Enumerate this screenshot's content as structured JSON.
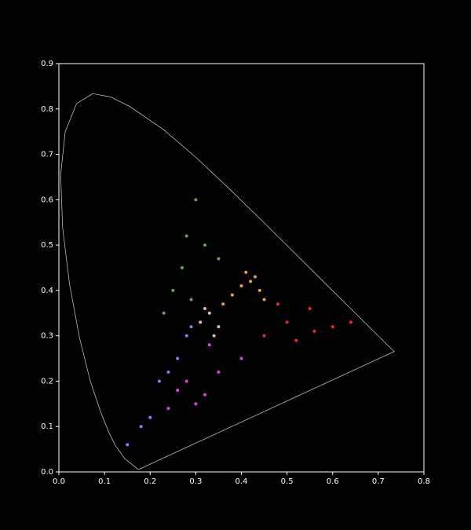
{
  "chart_data": {
    "type": "scatter",
    "xlim": [
      0,
      0.8
    ],
    "ylim": [
      0,
      0.9
    ],
    "xticks": [
      {
        "value": 0,
        "label": "0.0"
      },
      0.1,
      0.2,
      0.3,
      0.4,
      0.5,
      0.6,
      0.7,
      0.8
    ],
    "yticks": [
      {
        "value": 0,
        "label": "0.0"
      },
      0.1,
      0.2,
      0.3,
      0.4,
      0.5,
      0.6,
      0.7,
      0.8,
      0.9
    ],
    "locus": {
      "color": "#bbbbbb",
      "x": [
        0.1741,
        0.144,
        0.1241,
        0.1096,
        0.0913,
        0.0687,
        0.0454,
        0.0235,
        0.0082,
        0.0039,
        0.0139,
        0.0389,
        0.0743,
        0.1142,
        0.1547,
        0.2296,
        0.3016,
        0.3731,
        0.4441,
        0.5125,
        0.5752,
        0.627,
        0.6915,
        0.7347,
        0.1741
      ],
      "y": [
        0.005,
        0.0297,
        0.0578,
        0.0868,
        0.1327,
        0.2007,
        0.295,
        0.4127,
        0.5384,
        0.6548,
        0.7502,
        0.812,
        0.8338,
        0.8262,
        0.8059,
        0.7543,
        0.6923,
        0.6245,
        0.5547,
        0.4866,
        0.4242,
        0.3725,
        0.3083,
        0.2653,
        0.005
      ]
    },
    "series": [
      {
        "color": "#ff2020",
        "x": [
          0.64,
          0.6,
          0.56,
          0.52,
          0.5,
          0.55,
          0.45,
          0.48
        ],
        "y": [
          0.33,
          0.32,
          0.31,
          0.29,
          0.33,
          0.36,
          0.3,
          0.37
        ]
      },
      {
        "color": "#f0a030",
        "x": [
          0.42,
          0.43,
          0.4,
          0.44,
          0.41,
          0.38,
          0.45,
          0.36
        ],
        "y": [
          0.42,
          0.43,
          0.41,
          0.4,
          0.44,
          0.39,
          0.38,
          0.37
        ]
      },
      {
        "color": "#e040e0",
        "x": [
          0.3,
          0.28,
          0.32,
          0.35,
          0.4,
          0.26,
          0.24,
          0.33
        ],
        "y": [
          0.15,
          0.2,
          0.17,
          0.22,
          0.25,
          0.18,
          0.14,
          0.28
        ]
      },
      {
        "color": "#8080ff",
        "x": [
          0.2,
          0.18,
          0.15,
          0.22,
          0.26,
          0.28,
          0.29,
          0.24
        ],
        "y": [
          0.12,
          0.1,
          0.06,
          0.2,
          0.25,
          0.3,
          0.32,
          0.22
        ]
      },
      {
        "color": "#70a060",
        "x": [
          0.3,
          0.28,
          0.27,
          0.25,
          0.32,
          0.29,
          0.23,
          0.35
        ],
        "y": [
          0.6,
          0.52,
          0.45,
          0.4,
          0.5,
          0.38,
          0.35,
          0.47
        ]
      },
      {
        "color": "#e8b0c0",
        "x": [
          0.31,
          0.33,
          0.35,
          0.34,
          0.32
        ],
        "y": [
          0.33,
          0.35,
          0.32,
          0.3,
          0.36
        ]
      }
    ]
  }
}
